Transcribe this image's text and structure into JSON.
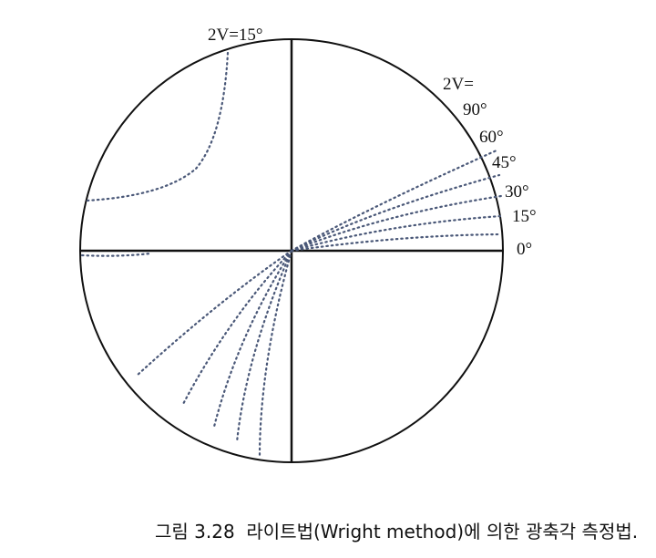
{
  "figure": {
    "top_label": "2V=15°",
    "side_labels": [
      "2V=",
      "90°",
      "60°",
      "45°",
      "30°",
      "15°",
      "0°"
    ],
    "caption": "그림 3.28  라이트법(Wright method)에 의한 광축각 측정법."
  }
}
